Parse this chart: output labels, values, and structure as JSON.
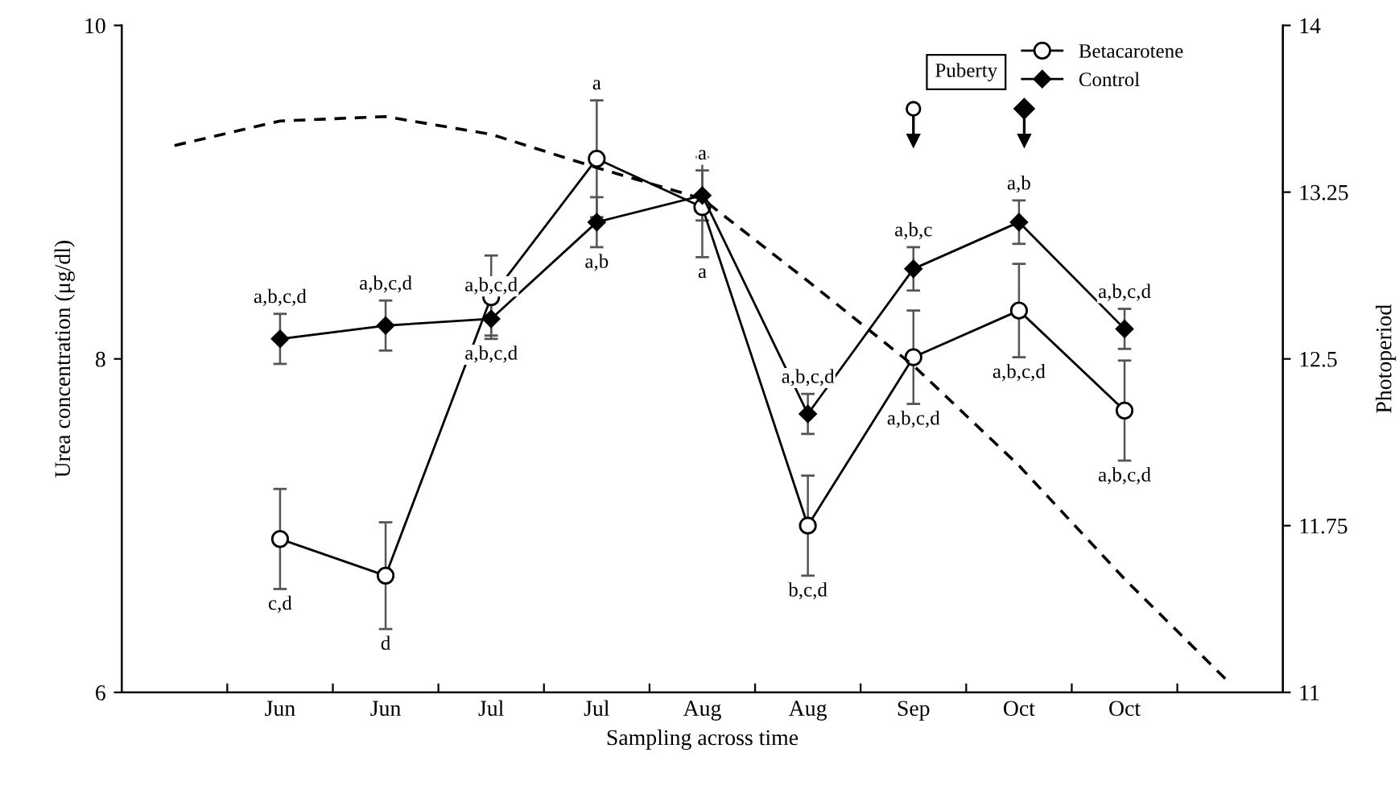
{
  "chart_data": {
    "type": "line",
    "xlabel": "Sampling across time",
    "ylabel": "Urea concentration (μg/dl)",
    "y2label": "Photoperiod",
    "categories": [
      null,
      "Jun",
      "Jun",
      "Jul",
      "Jul",
      "Aug",
      "Aug",
      "Sep",
      "Oct",
      "Oct",
      null
    ],
    "ylim": [
      6,
      10
    ],
    "yticks": [
      6,
      8,
      10
    ],
    "y2lim": [
      11,
      14
    ],
    "y2ticks": [
      11,
      11.75,
      12.5,
      13.25,
      14
    ],
    "series": [
      {
        "name": "Betacarotene",
        "color": "#000000",
        "marker": "circle",
        "values": [
          null,
          6.92,
          6.7,
          8.37,
          9.2,
          8.91,
          7.0,
          8.01,
          8.29,
          7.69,
          null
        ],
        "errors": [
          null,
          0.3,
          0.32,
          0.25,
          0.35,
          0.3,
          0.3,
          0.28,
          0.28,
          0.3,
          null
        ],
        "value_labels": [
          null,
          "c,d",
          "d",
          "a,b,c,d",
          "a",
          "a",
          "b,c,d",
          "a,b,c,d",
          "a,b,c,d",
          "a,b,c,d",
          null
        ]
      },
      {
        "name": "Control",
        "color": "#000000",
        "marker": "diamond",
        "values": [
          null,
          8.12,
          8.2,
          8.24,
          8.82,
          8.98,
          7.67,
          8.54,
          8.82,
          8.18,
          null
        ],
        "errors": [
          null,
          0.15,
          0.15,
          0.1,
          0.15,
          0.15,
          0.12,
          0.13,
          0.13,
          0.12,
          null
        ],
        "value_labels": [
          null,
          "a,b,c,d",
          "a,b,c,d",
          "a,b,c,d",
          "a,b",
          "a",
          "a,b,c,d",
          "a,b,c",
          "a,b",
          "a,b,c,d",
          null
        ]
      },
      {
        "type": "line",
        "axis": "y2",
        "color": "#000000",
        "line_style": "dashed",
        "marker": "none",
        "values": [
          13.46,
          13.57,
          13.59,
          13.51,
          13.36,
          13.22,
          12.85,
          12.47,
          12.02,
          11.51,
          11.04
        ]
      }
    ],
    "annotations": [
      "Puberty"
    ],
    "legend": "top right",
    "grid": false
  }
}
